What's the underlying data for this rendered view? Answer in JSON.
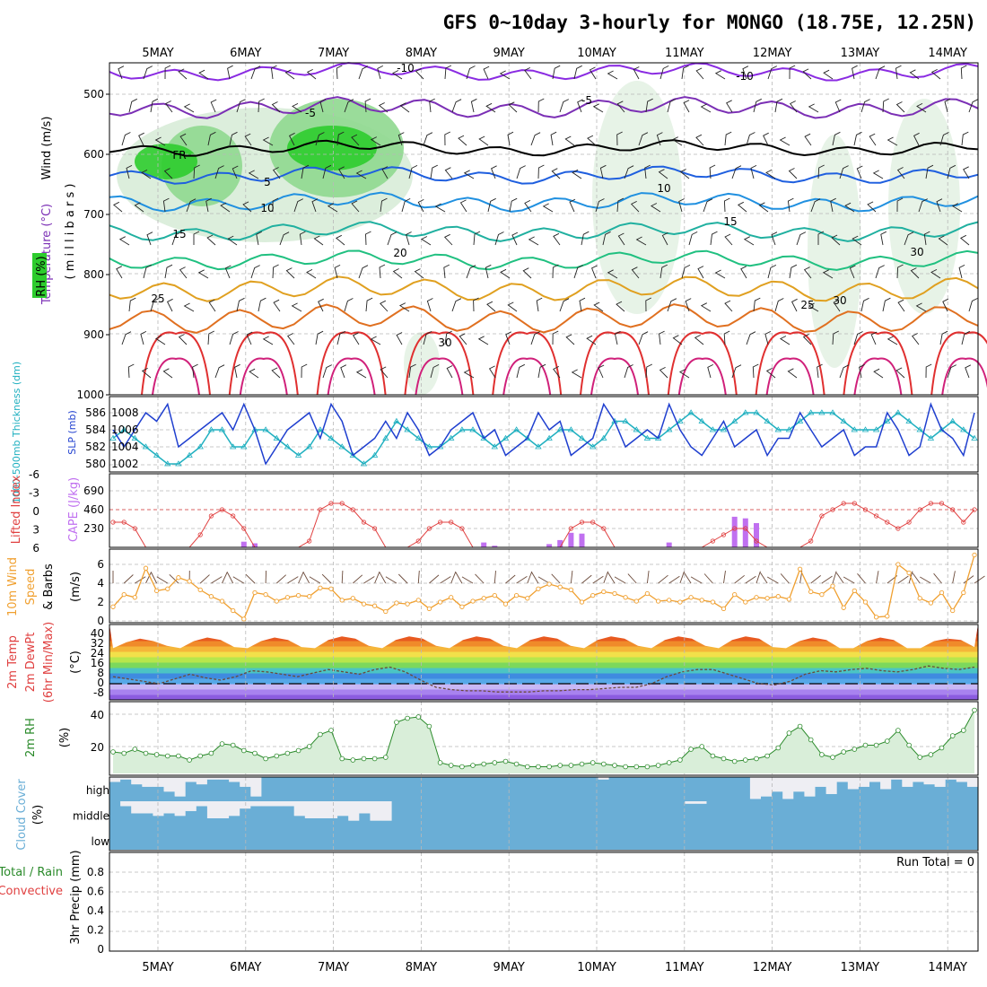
{
  "title": "GFS 0~10day 3-hourly for MONGO (18.75E, 12.25N)",
  "dates": [
    "5MAY",
    "6MAY",
    "7MAY",
    "8MAY",
    "9MAY",
    "10MAY",
    "11MAY",
    "12MAY",
    "13MAY",
    "14MAY"
  ],
  "colors": {
    "rh_green": "#2ecc2e",
    "temp_purple": "#7b2fb5",
    "fr_black": "#000000",
    "slp_blue": "#1f3fcf",
    "thick_cyan": "#20b0c0",
    "cape_bar": "#c070f0",
    "li_red": "#e04040",
    "wind10": "#f0a030",
    "rh2m": "#2a8a2a",
    "cloud": "#6aaed6"
  },
  "panels": {
    "upper": {
      "label_wind": "Wind (m/s)",
      "label_temp": "Temperature (°C)",
      "label_rh": "RH (%)",
      "label_mb": "( m i l l i b a r s )",
      "ticks": [
        "500",
        "600",
        "700",
        "800",
        "900",
        "1000"
      ]
    },
    "slp": {
      "label_thick": "1000-500mb Thickness (dm)",
      "label_slp": "SLP (mb)",
      "left_ticks": [
        "586",
        "584",
        "582",
        "580"
      ],
      "right_ticks": [
        "1008",
        "1006",
        "1004",
        "1002"
      ]
    },
    "cape": {
      "label_li": "Lifted Index",
      "label_cape": "CAPE (J/kg)",
      "left_ticks": [
        "-6",
        "-3",
        "0",
        "3",
        "6"
      ],
      "right_ticks": [
        "690",
        "460",
        "230"
      ]
    },
    "wind10": {
      "label1": "10m Wind",
      "label2": "Speed",
      "label3": "& Barbs",
      "label4": "(m/s)",
      "ticks": [
        "6",
        "4",
        "2",
        "0"
      ]
    },
    "temp2m": {
      "label1": "2m Temp",
      "label2": "2m DewPt",
      "label3": "(6hr Min/Max)",
      "label4": "(°C)",
      "ticks": [
        "40",
        "32",
        "24",
        "16",
        "8",
        "0",
        "-8"
      ]
    },
    "rh2m": {
      "label1": "2m RH",
      "label2": "(%)",
      "ticks": [
        "40",
        "20"
      ]
    },
    "cloud": {
      "label1": "Cloud Cover",
      "label2": "(%)",
      "levels": [
        "high",
        "middle",
        "low"
      ]
    },
    "precip": {
      "label1": "Total / Rain",
      "label2": "Convective",
      "label3": "3hr Precip (mm)",
      "ticks": [
        "0.8",
        "0.6",
        "0.4",
        "0.2",
        "0"
      ],
      "run_total": "Run Total = 0"
    }
  },
  "chart_data": [
    {
      "type": "line",
      "name": "contours",
      "contour_labels": [
        "-10",
        "-5",
        "FR",
        "5",
        "10",
        "15",
        "20",
        "25",
        "30",
        "-5",
        "-10",
        "10",
        "15",
        "25",
        "30",
        "30"
      ]
    },
    {
      "type": "line",
      "series": [
        {
          "name": "SLP (mb)",
          "values": [
            1006,
            1004,
            1006,
            1008,
            1007,
            1009,
            1004,
            1005,
            1006,
            1007,
            1008,
            1006,
            1009,
            1006,
            1002,
            1004,
            1006,
            1007,
            1008,
            1005,
            1009,
            1007,
            1003,
            1004,
            1005,
            1007,
            1005,
            1008,
            1006,
            1003,
            1004,
            1006,
            1007,
            1008,
            1005,
            1006,
            1003,
            1004,
            1005,
            1008,
            1006,
            1007,
            1003,
            1004,
            1005,
            1009,
            1007,
            1004,
            1005,
            1006,
            1005,
            1009,
            1006,
            1004,
            1003,
            1005,
            1007,
            1004,
            1005,
            1006,
            1003,
            1005,
            1005,
            1008,
            1006,
            1004,
            1005,
            1006,
            1003,
            1004,
            1004,
            1008,
            1006,
            1003,
            1004,
            1009,
            1006,
            1005,
            1003,
            1008
          ]
        },
        {
          "name": "1000-500mb Thickness (dm)",
          "values": [
            1005,
            1006,
            1005,
            1004,
            1003,
            1002,
            1002,
            1003,
            1004,
            1006,
            1006,
            1004,
            1004,
            1006,
            1006,
            1005,
            1004,
            1003,
            1004,
            1006,
            1005,
            1004,
            1003,
            1002,
            1003,
            1005,
            1007,
            1006,
            1005,
            1004,
            1004,
            1005,
            1006,
            1006,
            1005,
            1004,
            1005,
            1006,
            1005,
            1004,
            1005,
            1006,
            1006,
            1005,
            1004,
            1005,
            1007,
            1007,
            1006,
            1005,
            1005,
            1006,
            1007,
            1008,
            1007,
            1006,
            1006,
            1007,
            1008,
            1008,
            1007,
            1006,
            1006,
            1007,
            1008,
            1008,
            1008,
            1007,
            1006,
            1006,
            1006,
            1007,
            1008,
            1007,
            1006,
            1005,
            1006,
            1007,
            1006,
            1005
          ]
        }
      ]
    },
    {
      "type": "bar",
      "series": [
        {
          "name": "Lifted Index",
          "values": [
            2,
            2,
            3,
            6,
            6,
            6,
            6,
            6,
            4,
            1,
            0,
            1,
            3,
            6,
            6,
            6,
            6,
            6,
            5,
            0,
            -1,
            -1,
            0,
            2,
            3,
            6,
            6,
            6,
            5,
            3,
            2,
            2,
            3,
            6,
            6,
            6,
            6,
            6,
            6,
            6,
            6,
            6,
            3,
            2,
            2,
            3,
            6,
            6,
            6,
            6,
            6,
            6,
            6,
            6,
            6,
            5,
            4,
            3,
            3,
            5,
            6,
            6,
            6,
            6,
            5,
            1,
            0,
            -1,
            -1,
            0,
            1,
            2,
            3,
            2,
            0,
            -1,
            -1,
            0,
            2,
            0
          ]
        },
        {
          "name": "CAPE (J/kg)",
          "values": [
            0,
            0,
            0,
            0,
            0,
            0,
            0,
            0,
            0,
            0,
            0,
            0,
            70,
            50,
            0,
            0,
            0,
            0,
            0,
            0,
            0,
            0,
            0,
            0,
            0,
            0,
            0,
            0,
            0,
            0,
            0,
            0,
            0,
            0,
            60,
            20,
            0,
            0,
            0,
            0,
            40,
            90,
            180,
            170,
            0,
            0,
            0,
            0,
            0,
            0,
            0,
            60,
            0,
            0,
            0,
            0,
            0,
            380,
            360,
            300,
            0,
            0,
            0,
            0,
            0,
            0,
            0,
            0,
            0,
            0,
            0,
            0,
            0,
            0,
            0,
            0,
            0,
            0,
            0,
            0
          ]
        }
      ]
    },
    {
      "type": "line",
      "series": [
        {
          "name": "10m Wind Speed (m/s)",
          "values": [
            1.5,
            2.8,
            2.5,
            5.6,
            3.2,
            3.4,
            4.6,
            4.2,
            3.3,
            2.6,
            2.1,
            1.1,
            0.2,
            3.0,
            2.8,
            2.1,
            2.5,
            2.7,
            2.6,
            3.5,
            3.4,
            2.2,
            2.4,
            1.8,
            1.6,
            1.0,
            1.9,
            1.8,
            2.2,
            1.3,
            2.0,
            2.5,
            1.5,
            2.1,
            2.4,
            2.7,
            1.8,
            2.7,
            2.4,
            3.4,
            3.9,
            3.6,
            3.3,
            2.0,
            2.7,
            3.1,
            2.9,
            2.5,
            2.1,
            2.9,
            2.1,
            2.2,
            2.0,
            2.5,
            2.2,
            2.0,
            1.3,
            2.8,
            2.0,
            2.5,
            2.4,
            2.6,
            2.3,
            5.5,
            3.1,
            2.8,
            3.7,
            1.4,
            3.2,
            2.0,
            0.4,
            0.5,
            6.0,
            5.1,
            2.4,
            1.9,
            3.0,
            1.1,
            3.0,
            7.0
          ]
        }
      ]
    },
    {
      "type": "area",
      "series": [
        {
          "name": "2m Temp (°C)",
          "values": [
            30,
            35,
            38,
            36,
            32,
            30,
            36,
            39,
            37,
            31,
            30,
            36,
            39,
            37,
            31,
            30,
            37,
            40,
            38,
            32,
            30,
            37,
            40,
            38,
            32,
            30,
            37,
            40,
            38,
            32,
            30,
            37,
            40,
            38,
            32,
            30,
            37,
            40,
            38,
            32,
            30,
            37,
            40,
            38,
            32,
            30,
            37,
            40,
            38,
            31,
            30,
            36,
            39,
            37,
            30,
            30,
            36,
            39,
            37,
            30,
            30,
            36,
            38,
            37,
            31
          ]
        },
        {
          "name": "2m DewPt (°C)",
          "values": [
            6,
            4,
            2,
            0,
            4,
            8,
            5,
            3,
            6,
            11,
            10,
            8,
            6,
            9,
            12,
            10,
            8,
            12,
            14,
            10,
            3,
            -3,
            -5,
            -6,
            -6,
            -7,
            -7,
            -7,
            -6,
            -6,
            -5,
            -5,
            -4,
            -3,
            -3,
            0,
            6,
            10,
            12,
            12,
            8,
            4,
            0,
            -1,
            2,
            8,
            11,
            10,
            12,
            13,
            11,
            10,
            12,
            15,
            13,
            12,
            14
          ]
        }
      ]
    },
    {
      "type": "area",
      "series": [
        {
          "name": "2m RH (%)",
          "values": [
            16,
            15,
            18,
            15,
            14,
            13,
            13,
            10,
            13,
            15,
            22,
            21,
            17,
            15,
            11,
            13,
            15,
            17,
            20,
            29,
            32,
            11,
            10,
            11,
            11,
            12,
            38,
            41,
            42,
            35,
            8,
            6,
            5,
            6,
            7,
            8,
            9,
            7,
            5,
            5,
            5,
            6,
            6,
            7,
            8,
            7,
            6,
            5,
            5,
            5,
            6,
            8,
            10,
            18,
            20,
            13,
            11,
            9,
            10,
            11,
            13,
            19,
            30,
            35,
            25,
            14,
            12,
            16,
            18,
            21,
            21,
            24,
            32,
            21,
            12,
            14,
            19,
            28,
            32,
            47
          ]
        }
      ]
    },
    {
      "type": "heatmap",
      "series": [
        {
          "name": "high",
          "values": [
            80,
            90,
            70,
            60,
            60,
            40,
            20,
            80,
            70,
            90,
            90,
            80,
            60,
            20,
            100,
            100,
            100,
            100,
            100,
            100,
            100,
            100,
            100,
            100,
            100,
            100,
            100,
            100,
            100,
            100,
            100,
            100,
            100,
            100,
            100,
            100,
            100,
            100,
            100,
            100,
            100,
            100,
            100,
            100,
            100,
            90,
            100,
            100,
            100,
            100,
            100,
            100,
            100,
            100,
            100,
            100,
            100,
            100,
            100,
            10,
            20,
            40,
            10,
            40,
            20,
            60,
            30,
            80,
            50,
            60,
            80,
            50,
            90,
            60,
            80,
            70,
            60,
            90,
            80,
            60
          ]
        },
        {
          "name": "middle",
          "values": [
            100,
            80,
            50,
            50,
            40,
            50,
            40,
            60,
            80,
            30,
            30,
            40,
            70,
            80,
            80,
            80,
            80,
            40,
            30,
            30,
            30,
            40,
            20,
            50,
            20,
            20,
            100,
            100,
            100,
            100,
            100,
            100,
            100,
            100,
            100,
            100,
            100,
            100,
            100,
            100,
            100,
            100,
            100,
            100,
            100,
            100,
            100,
            100,
            100,
            100,
            100,
            100,
            100,
            90,
            90,
            100,
            100,
            100,
            100,
            100,
            100,
            100,
            100,
            100,
            100,
            100,
            100,
            100,
            100,
            100,
            100,
            100,
            100,
            100,
            100,
            100,
            100,
            100,
            100,
            100
          ]
        },
        {
          "name": "low",
          "values": [
            100,
            100,
            100,
            100,
            100,
            100,
            100,
            100,
            100,
            100,
            100,
            100,
            100,
            100,
            100,
            100,
            100,
            100,
            100,
            100,
            100,
            100,
            100,
            100,
            100,
            100,
            100,
            100,
            100,
            100,
            100,
            100,
            100,
            100,
            100,
            100,
            100,
            100,
            100,
            100,
            100,
            100,
            100,
            100,
            100,
            100,
            100,
            100,
            100,
            100,
            100,
            100,
            100,
            100,
            100,
            100,
            100,
            100,
            100,
            100,
            100,
            100,
            100,
            100,
            100,
            100,
            100,
            100,
            100,
            100,
            100,
            100,
            100,
            100,
            100,
            100,
            100,
            100,
            100,
            100
          ]
        }
      ]
    },
    {
      "type": "bar",
      "series": [
        {
          "name": "3hr Precip (mm)",
          "values": [
            0,
            0,
            0,
            0,
            0,
            0,
            0,
            0,
            0,
            0,
            0,
            0,
            0,
            0,
            0,
            0,
            0,
            0,
            0,
            0,
            0,
            0,
            0,
            0,
            0,
            0,
            0,
            0,
            0,
            0,
            0,
            0,
            0,
            0,
            0,
            0,
            0,
            0,
            0,
            0,
            0,
            0,
            0,
            0,
            0,
            0,
            0,
            0,
            0,
            0,
            0,
            0,
            0,
            0,
            0,
            0,
            0,
            0,
            0,
            0,
            0,
            0,
            0,
            0,
            0,
            0,
            0,
            0,
            0,
            0,
            0,
            0,
            0,
            0,
            0,
            0,
            0,
            0,
            0,
            0
          ]
        }
      ],
      "ylim": [
        0,
        0.8
      ]
    }
  ]
}
